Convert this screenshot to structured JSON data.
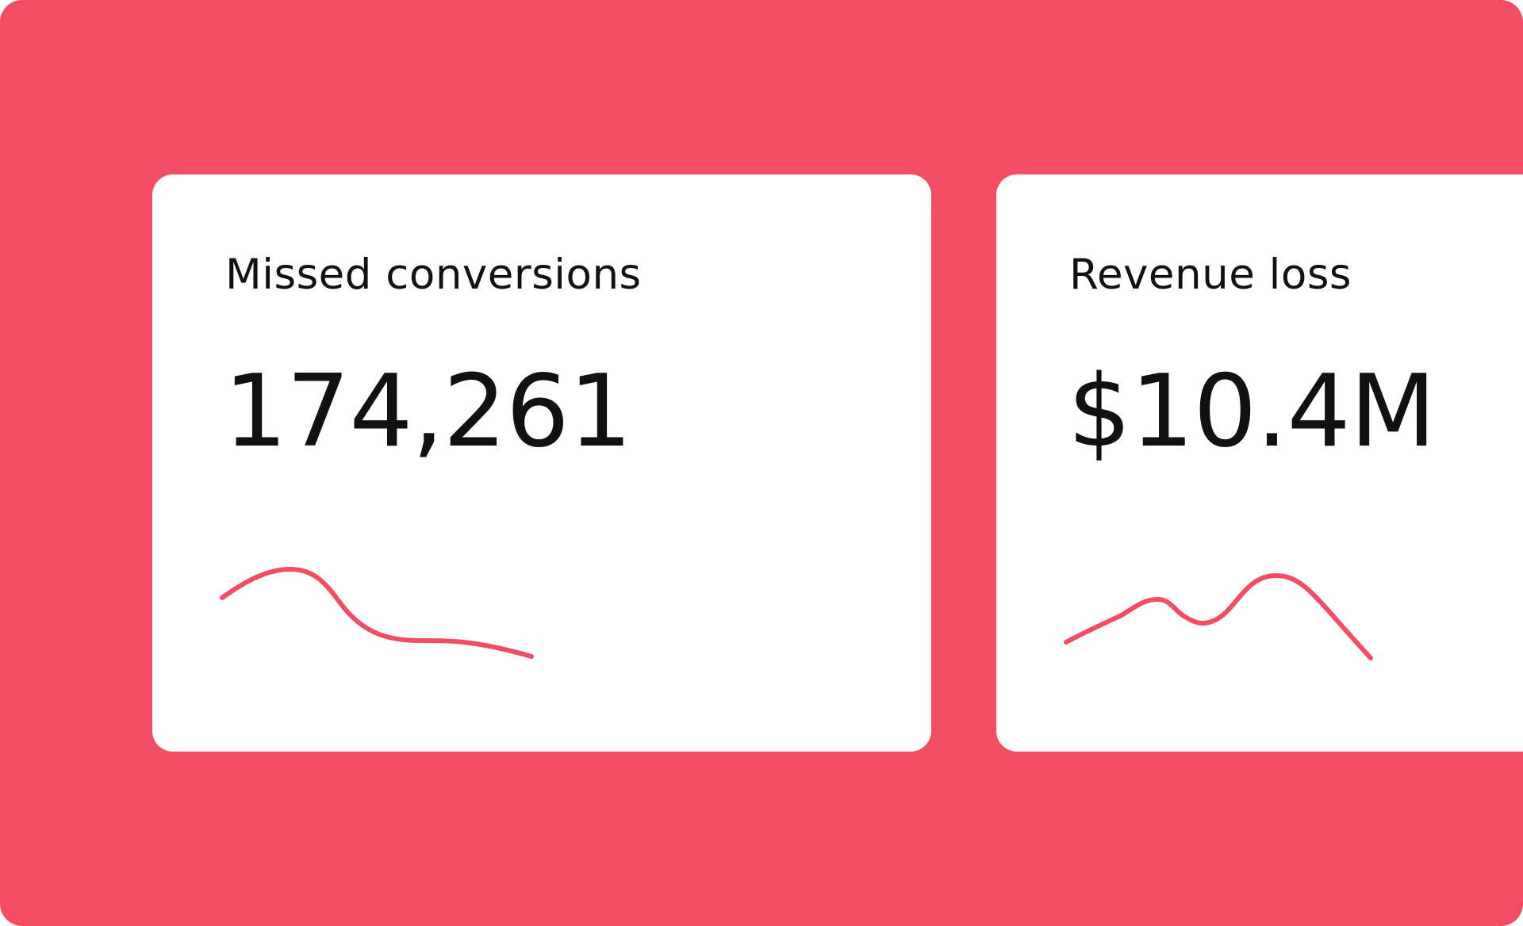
{
  "colors": {
    "background": "#f24d63",
    "card": "#ffffff",
    "text": "#111111",
    "sparkline": "#f24d63"
  },
  "cards": [
    {
      "label": "Missed conversions",
      "value": "174,261",
      "trend": [
        0.62,
        0.98,
        0.72,
        0.28,
        0.22,
        0.02
      ]
    },
    {
      "label": "Revenue loss",
      "value": "$10.4M",
      "trend": [
        0.16,
        0.57,
        0.35,
        0.98,
        0.02
      ]
    }
  ]
}
